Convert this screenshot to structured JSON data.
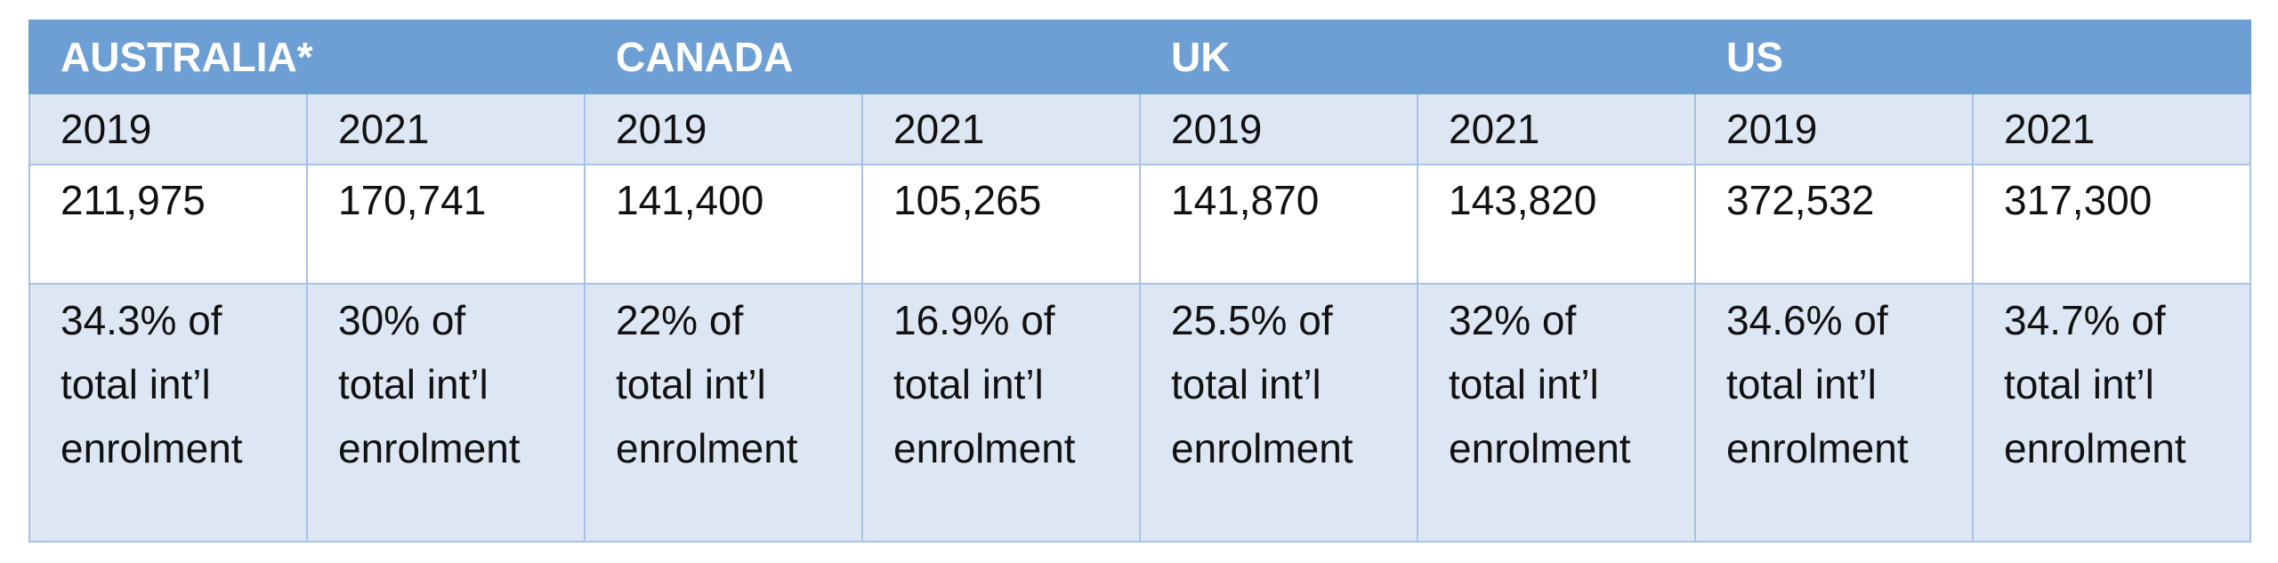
{
  "countries": [
    {
      "name": "AUSTRALIA*",
      "columns": [
        {
          "year": "2019",
          "count": "211,975",
          "share": [
            "34.3% of",
            "total int’l",
            "enrolment"
          ]
        },
        {
          "year": "2021",
          "count": "170,741",
          "share": [
            "30% of",
            "total int’l",
            "enrolment"
          ]
        }
      ]
    },
    {
      "name": "CANADA",
      "columns": [
        {
          "year": "2019",
          "count": "141,400",
          "share": [
            "22% of",
            "total int’l",
            "enrolment"
          ]
        },
        {
          "year": "2021",
          "count": "105,265",
          "share": [
            "16.9% of",
            "total int’l",
            "enrolment"
          ]
        }
      ]
    },
    {
      "name": "UK",
      "columns": [
        {
          "year": "2019",
          "count": "141,870",
          "share": [
            "25.5% of",
            "total int’l",
            "enrolment"
          ]
        },
        {
          "year": "2021",
          "count": "143,820",
          "share": [
            "32% of",
            "total int’l",
            "enrolment"
          ]
        }
      ]
    },
    {
      "name": "US",
      "columns": [
        {
          "year": "2019",
          "count": "372,532",
          "share": [
            "34.6% of",
            "total int’l",
            "enrolment"
          ]
        },
        {
          "year": "2021",
          "count": "317,300",
          "share": [
            "34.7% of",
            "total int’l",
            "enrolment"
          ]
        }
      ]
    }
  ],
  "colors": {
    "header_bg": "#6e9fd4",
    "header_text": "#ffffff",
    "band_bg": "#dde7f4",
    "grid": "#a8c1e6"
  }
}
